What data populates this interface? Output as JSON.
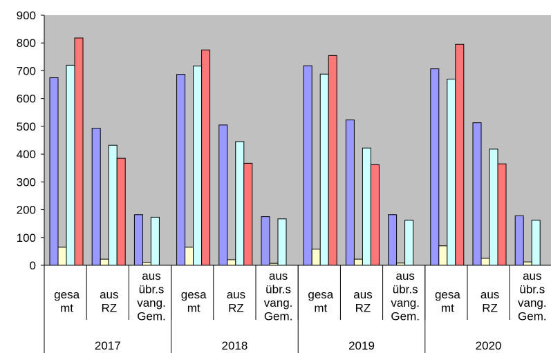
{
  "chart_data": {
    "type": "bar",
    "ylim": [
      0,
      900
    ],
    "yticks": [
      0,
      100,
      200,
      300,
      400,
      500,
      600,
      700,
      800,
      900
    ],
    "grid": false,
    "plot_background": "#c0c0c0",
    "groups": [
      {
        "year": "2017",
        "categories": [
          {
            "label_lines": [
              "gesa",
              "mt"
            ],
            "values": [
              675,
              65,
              720,
              818
            ]
          },
          {
            "label_lines": [
              "aus",
              "RZ"
            ],
            "values": [
              493,
              22,
              432,
              385
            ]
          },
          {
            "label_lines": [
              "aus",
              "übr.s",
              "vang.",
              "Gem."
            ],
            "values": [
              182,
              10,
              173,
              0
            ]
          }
        ]
      },
      {
        "year": "2018",
        "categories": [
          {
            "label_lines": [
              "gesa",
              "mt"
            ],
            "values": [
              687,
              65,
              717,
              775
            ]
          },
          {
            "label_lines": [
              "aus",
              "RZ"
            ],
            "values": [
              505,
              20,
              445,
              367
            ]
          },
          {
            "label_lines": [
              "aus",
              "übr.s",
              "vang.",
              "Gem."
            ],
            "values": [
              175,
              7,
              167,
              0
            ]
          }
        ]
      },
      {
        "year": "2019",
        "categories": [
          {
            "label_lines": [
              "gesa",
              "mt"
            ],
            "values": [
              718,
              58,
              688,
              755
            ]
          },
          {
            "label_lines": [
              "aus",
              "RZ"
            ],
            "values": [
              523,
              22,
              422,
              362
            ]
          },
          {
            "label_lines": [
              "aus",
              "übr.s",
              "vang.",
              "Gem."
            ],
            "values": [
              182,
              8,
              162,
              0
            ]
          }
        ]
      },
      {
        "year": "2020",
        "categories": [
          {
            "label_lines": [
              "gesa",
              "mt"
            ],
            "values": [
              707,
              70,
              670,
              795
            ]
          },
          {
            "label_lines": [
              "aus",
              "RZ"
            ],
            "values": [
              513,
              25,
              418,
              365
            ]
          },
          {
            "label_lines": [
              "aus",
              "übr.s",
              "vang.",
              "Gem."
            ],
            "values": [
              178,
              12,
              162,
              0
            ]
          }
        ]
      }
    ],
    "series_colors": [
      "#9999ff",
      "#ffffcc",
      "#ccffff",
      "#ff7777"
    ]
  }
}
